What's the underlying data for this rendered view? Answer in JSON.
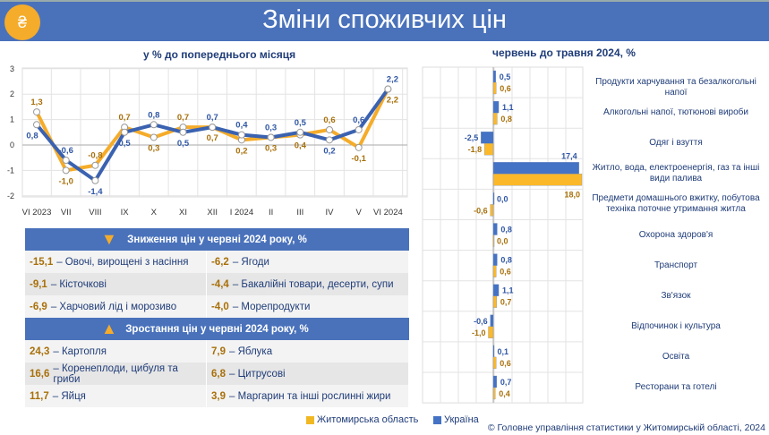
{
  "header": {
    "title": "Зміни споживчих цін",
    "logo_icon": "price-tag-hryvnia-icon"
  },
  "colors": {
    "region": "#fbb829",
    "ukraine": "#4472c4",
    "header": "#4a72bb"
  },
  "legend": {
    "region": "Житомирська область",
    "ukraine": "Україна"
  },
  "copyright": "© Головне управління статистики у Житомирській області, 2024",
  "chart_data": [
    {
      "type": "line",
      "title": "у % до попереднього місяця",
      "categories": [
        "VI 2023",
        "VII",
        "VIII",
        "IX",
        "X",
        "XI",
        "XII",
        "I 2024",
        "II",
        "III",
        "IV",
        "V",
        "VI 2024"
      ],
      "ylim": [
        -2,
        3
      ],
      "yticks": [
        "-2",
        "-1",
        "0",
        "1",
        "2",
        "3"
      ],
      "grid": true,
      "series": [
        {
          "name": "Житомирська область",
          "values": [
            1.3,
            -1.0,
            -0.8,
            0.7,
            0.3,
            0.7,
            0.7,
            0.2,
            0.3,
            0.4,
            0.6,
            -0.1,
            2.2
          ]
        },
        {
          "name": "Україна",
          "values": [
            0.8,
            -0.6,
            -1.4,
            0.5,
            0.8,
            0.5,
            0.7,
            0.4,
            0.3,
            0.5,
            0.2,
            0.6,
            2.2
          ]
        }
      ]
    },
    {
      "type": "bar",
      "orientation": "horizontal",
      "title": "червень до травня 2024, %",
      "categories": [
        "Продукти харчування та безалкогольні напої",
        "Алкогольні напої, тютюнові вироби",
        "Одяг і взуття",
        "Житло, вода, електроенергія, газ та інші види палива",
        "Предмети домашнього вжитку, побутова техніка поточне утримання житла",
        "Охорона здоров'я",
        "Транспорт",
        "Зв'язок",
        "Відпочинок і культура",
        "Освіта",
        "Ресторани та готелі"
      ],
      "series": [
        {
          "name": "Україна",
          "values": [
            0.5,
            1.1,
            -2.5,
            17.4,
            0.0,
            0.8,
            0.8,
            1.1,
            -0.6,
            0.1,
            0.7
          ]
        },
        {
          "name": "Житомирська область",
          "values": [
            0.6,
            0.8,
            -1.8,
            18.0,
            -0.6,
            0.0,
            0.6,
            0.7,
            -1.0,
            0.6,
            0.4
          ]
        }
      ]
    }
  ],
  "decrease": {
    "title": "Зниження цін у червні 2024 року, %",
    "rows": [
      [
        {
          "v": "-15,1",
          "t": "– Овочі, вирощені з насіння"
        },
        {
          "v": "-6,2",
          "t": "– Ягоди"
        }
      ],
      [
        {
          "v": "-9,1",
          "t": "– Кісточкові"
        },
        {
          "v": "-4,4",
          "t": "– Бакалійні товари, десерти, супи"
        }
      ],
      [
        {
          "v": "-6,9",
          "t": "– Харчовий лід і морозиво"
        },
        {
          "v": "-4,0",
          "t": "– Морепродукти"
        }
      ]
    ]
  },
  "increase": {
    "title": "Зростання цін у червні 2024 року, %",
    "rows": [
      [
        {
          "v": "24,3",
          "t": "– Картопля"
        },
        {
          "v": "7,9",
          "t": "– Яблука"
        }
      ],
      [
        {
          "v": "16,6",
          "t": "– Коренеплоди, цибуля та гриби"
        },
        {
          "v": "6,8",
          "t": "– Цитрусові"
        }
      ],
      [
        {
          "v": "11,7",
          "t": "– Яйця"
        },
        {
          "v": "3,9",
          "t": "– Маргарин та інші рослинні жири"
        }
      ]
    ]
  }
}
